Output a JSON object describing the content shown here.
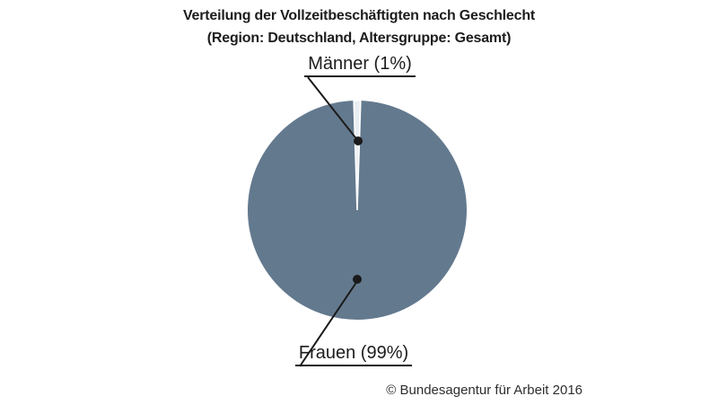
{
  "title": {
    "line1": "Verteilung der Vollzeitbeschäftigten nach Geschlecht",
    "line2": "(Region: Deutschland, Altersgruppe: Gesamt)"
  },
  "chart_data": {
    "type": "pie",
    "title": "Verteilung der Vollzeitbeschäftigten nach Geschlecht",
    "subtitle": "(Region: Deutschland, Altersgruppe: Gesamt)",
    "categories": [
      "Männer",
      "Frauen"
    ],
    "values": [
      1,
      99
    ],
    "unit": "%",
    "slices": [
      {
        "label": "Männer",
        "value_pct": 1,
        "color": "#e9eef3",
        "label_text": "Männer (1%)"
      },
      {
        "label": "Frauen",
        "value_pct": 99,
        "color": "#63798e",
        "label_text": "Frauen (99%)"
      }
    ],
    "legend_position": "none",
    "labels_style": "callouts-with-leader-lines",
    "start_angle": "first slice centered at 12 o'clock"
  },
  "footer": {
    "copyright": "© Bundesagentur für Arbeit 2016"
  },
  "colors": {
    "pie_major": "#63798e",
    "pie_minor": "#e9eef3",
    "slice_separator": "#ffffff",
    "text": "#1c1c1c",
    "leader_line": "#1a1a1a",
    "background": "#ffffff"
  }
}
